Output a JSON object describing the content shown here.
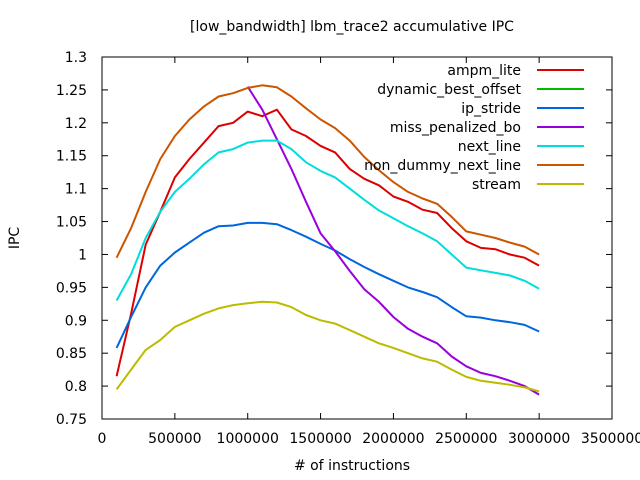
{
  "chart_data": {
    "type": "line",
    "title": "[low_bandwidth] lbm_trace2 accumulative IPC",
    "xlabel": "# of instructions",
    "ylabel": "IPC",
    "xlim": [
      0,
      3500000
    ],
    "ylim": [
      0.75,
      1.3
    ],
    "xticks": [
      0,
      500000,
      1000000,
      1500000,
      2000000,
      2500000,
      3000000,
      3500000
    ],
    "xtick_labels": [
      "0",
      "500000",
      "1000000",
      "1500000",
      "2000000",
      "2500000",
      "3000000",
      "3500000"
    ],
    "yticks": [
      0.75,
      0.8,
      0.85,
      0.9,
      0.95,
      1.0,
      1.05,
      1.1,
      1.15,
      1.2,
      1.25,
      1.3
    ],
    "ytick_labels": [
      "0.75",
      "0.8",
      "0.85",
      "0.9",
      "0.95",
      "1",
      "1.05",
      "1.1",
      "1.15",
      "1.2",
      "1.25",
      "1.3"
    ],
    "grid": false,
    "legend_position": "top-right",
    "series": [
      {
        "name": "ampm_lite",
        "color": "#dd0000",
        "x": [
          100000,
          200000,
          300000,
          400000,
          500000,
          600000,
          700000,
          800000,
          900000,
          1000000,
          1100000,
          1150000,
          1200000,
          1300000,
          1400000,
          1500000,
          1600000,
          1700000,
          1800000,
          1900000,
          2000000,
          2100000,
          2200000,
          2300000,
          2400000,
          2500000,
          2600000,
          2700000,
          2800000,
          2900000,
          3000000
        ],
        "y": [
          0.815,
          0.91,
          1.015,
          1.065,
          1.117,
          1.145,
          1.17,
          1.195,
          1.2,
          1.217,
          1.21,
          1.215,
          1.22,
          1.19,
          1.18,
          1.165,
          1.155,
          1.13,
          1.115,
          1.105,
          1.088,
          1.08,
          1.068,
          1.063,
          1.04,
          1.02,
          1.01,
          1.008,
          1.0,
          0.995,
          0.983
        ]
      },
      {
        "name": "dynamic_best_offset",
        "color": "#00bb00",
        "x": [],
        "y": []
      },
      {
        "name": "ip_stride",
        "color": "#0066dd",
        "x": [
          100000,
          200000,
          300000,
          400000,
          500000,
          600000,
          700000,
          800000,
          900000,
          1000000,
          1100000,
          1200000,
          1300000,
          1400000,
          1500000,
          1600000,
          1700000,
          1800000,
          1900000,
          2000000,
          2100000,
          2200000,
          2300000,
          2400000,
          2500000,
          2600000,
          2700000,
          2800000,
          2900000,
          3000000
        ],
        "y": [
          0.858,
          0.905,
          0.95,
          0.983,
          1.003,
          1.018,
          1.033,
          1.043,
          1.044,
          1.048,
          1.048,
          1.046,
          1.037,
          1.027,
          1.016,
          1.006,
          0.993,
          0.981,
          0.97,
          0.96,
          0.95,
          0.943,
          0.935,
          0.92,
          0.906,
          0.904,
          0.9,
          0.897,
          0.893,
          0.883
        ]
      },
      {
        "name": "miss_penalized_bo",
        "color": "#9900dd",
        "x": [
          1000000,
          1100000,
          1200000,
          1300000,
          1400000,
          1500000,
          1600000,
          1700000,
          1800000,
          1900000,
          2000000,
          2100000,
          2200000,
          2300000,
          2400000,
          2500000,
          2600000,
          2700000,
          2800000,
          2900000,
          3000000
        ],
        "y": [
          1.255,
          1.22,
          1.175,
          1.13,
          1.08,
          1.032,
          1.005,
          0.975,
          0.947,
          0.928,
          0.905,
          0.887,
          0.875,
          0.865,
          0.845,
          0.83,
          0.82,
          0.815,
          0.808,
          0.8,
          0.787
        ]
      },
      {
        "name": "next_line",
        "color": "#00dddd",
        "x": [
          100000,
          200000,
          300000,
          400000,
          500000,
          600000,
          700000,
          800000,
          900000,
          1000000,
          1100000,
          1200000,
          1300000,
          1400000,
          1500000,
          1600000,
          1700000,
          1800000,
          1900000,
          2000000,
          2100000,
          2200000,
          2300000,
          2400000,
          2500000,
          2600000,
          2700000,
          2800000,
          2900000,
          3000000
        ],
        "y": [
          0.93,
          0.97,
          1.025,
          1.065,
          1.095,
          1.115,
          1.137,
          1.155,
          1.16,
          1.17,
          1.173,
          1.173,
          1.16,
          1.14,
          1.127,
          1.117,
          1.1,
          1.083,
          1.067,
          1.055,
          1.043,
          1.032,
          1.02,
          1.0,
          0.98,
          0.976,
          0.972,
          0.968,
          0.96,
          0.948
        ]
      },
      {
        "name": "non_dummy_next_line",
        "color": "#cc5500",
        "x": [
          100000,
          200000,
          300000,
          400000,
          500000,
          600000,
          700000,
          800000,
          900000,
          1000000,
          1100000,
          1200000,
          1300000,
          1400000,
          1500000,
          1600000,
          1700000,
          1800000,
          1900000,
          2000000,
          2100000,
          2200000,
          2300000,
          2400000,
          2500000,
          2600000,
          2700000,
          2800000,
          2900000,
          3000000
        ],
        "y": [
          0.995,
          1.04,
          1.095,
          1.145,
          1.18,
          1.205,
          1.225,
          1.24,
          1.245,
          1.253,
          1.257,
          1.254,
          1.24,
          1.222,
          1.205,
          1.192,
          1.173,
          1.148,
          1.128,
          1.11,
          1.095,
          1.085,
          1.077,
          1.057,
          1.035,
          1.03,
          1.025,
          1.018,
          1.012,
          1.0
        ]
      },
      {
        "name": "stream",
        "color": "#bbbb00",
        "x": [
          100000,
          200000,
          300000,
          400000,
          500000,
          600000,
          700000,
          800000,
          900000,
          1000000,
          1100000,
          1200000,
          1300000,
          1400000,
          1500000,
          1600000,
          1700000,
          1800000,
          1900000,
          2000000,
          2100000,
          2200000,
          2300000,
          2400000,
          2500000,
          2600000,
          2700000,
          2800000,
          2900000,
          3000000
        ],
        "y": [
          0.795,
          0.825,
          0.855,
          0.87,
          0.89,
          0.9,
          0.91,
          0.918,
          0.923,
          0.926,
          0.928,
          0.927,
          0.92,
          0.908,
          0.9,
          0.895,
          0.885,
          0.875,
          0.865,
          0.858,
          0.85,
          0.842,
          0.837,
          0.825,
          0.814,
          0.808,
          0.805,
          0.802,
          0.798,
          0.792
        ]
      }
    ]
  }
}
